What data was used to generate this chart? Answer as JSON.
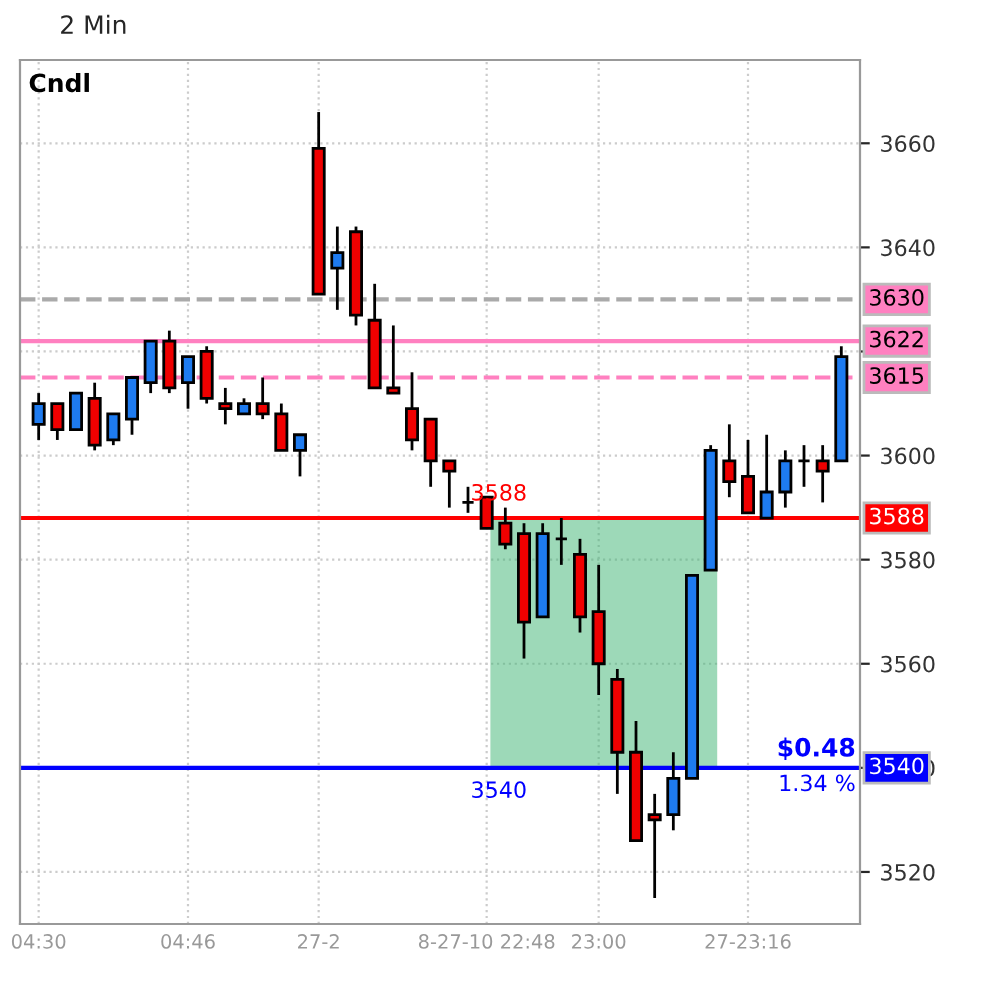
{
  "chart_data": {
    "type": "candlestick",
    "title": "2 Min",
    "categories": [
      "04:30",
      null,
      null,
      null,
      null,
      null,
      null,
      null,
      "04:46",
      null,
      null,
      null,
      null,
      null,
      null,
      "27-2",
      null,
      null,
      null,
      null,
      null,
      null,
      null,
      null,
      "8-27-10 22:48",
      null,
      null,
      null,
      null,
      null,
      "23:00",
      null,
      null,
      null,
      null,
      null,
      null,
      null,
      "27-23:16",
      null,
      null,
      null,
      null,
      null
    ],
    "ohlc": [
      [
        3606,
        3612,
        3603,
        3610
      ],
      [
        3610,
        3610,
        3603,
        3605
      ],
      [
        3605,
        3612,
        3605,
        3612
      ],
      [
        3611,
        3614,
        3601,
        3602
      ],
      [
        3603,
        3608,
        3602,
        3608
      ],
      [
        3607,
        3615,
        3604,
        3615
      ],
      [
        3614,
        3622,
        3612,
        3622
      ],
      [
        3622,
        3624,
        3612,
        3613
      ],
      [
        3614,
        3619,
        3609,
        3619
      ],
      [
        3620,
        3621,
        3610,
        3611
      ],
      [
        3610,
        3613,
        3606,
        3609
      ],
      [
        3608,
        3611,
        3608,
        3610
      ],
      [
        3610,
        3615,
        3607,
        3608
      ],
      [
        3608,
        3610,
        3601,
        3601
      ],
      [
        3601,
        3604,
        3596,
        3604
      ],
      [
        3659,
        3666,
        3631,
        3631
      ],
      [
        3636,
        3644,
        3628,
        3639
      ],
      [
        3643,
        3644,
        3625,
        3627
      ],
      [
        3626,
        3633,
        3613,
        3613
      ],
      [
        3613,
        3625,
        3612,
        3612
      ],
      [
        3609,
        3616,
        3601,
        3603
      ],
      [
        3607,
        3607,
        3594,
        3599
      ],
      [
        3599,
        3599,
        3590,
        3597
      ],
      [
        3591,
        3594,
        3589,
        3591
      ],
      [
        3592,
        3592,
        3586,
        3586
      ],
      [
        3587,
        3590,
        3582,
        3583
      ],
      [
        3585,
        3587,
        3561,
        3568
      ],
      [
        3569,
        3587,
        3569,
        3585
      ],
      [
        3584,
        3588,
        3579,
        3584
      ],
      [
        3581,
        3584,
        3566,
        3569
      ],
      [
        3570,
        3579,
        3554,
        3560
      ],
      [
        3557,
        3559,
        3535,
        3543
      ],
      [
        3543,
        3549,
        3526,
        3526
      ],
      [
        3531,
        3535,
        3515,
        3530
      ],
      [
        3531,
        3543,
        3528,
        3538
      ],
      [
        3538,
        3577,
        3538,
        3577
      ],
      [
        3578,
        3602,
        3578,
        3601
      ],
      [
        3599,
        3606,
        3592,
        3595
      ],
      [
        3596,
        3603,
        3589,
        3589
      ],
      [
        3588,
        3604,
        3588,
        3593
      ],
      [
        3593,
        3601,
        3590,
        3599
      ],
      [
        3599,
        3602,
        3594,
        3599
      ],
      [
        3599,
        3602,
        3591,
        3597
      ],
      [
        3599,
        3621,
        3599,
        3619
      ]
    ],
    "colors": [
      "#1e7bf0",
      "#f00000",
      "#1e7bf0",
      "#f00000",
      "#1e7bf0",
      "#1e7bf0",
      "#1e7bf0",
      "#f00000",
      "#1e7bf0",
      "#f00000",
      "#f00000",
      "#1e7bf0",
      "#f00000",
      "#f00000",
      "#1e7bf0",
      "#f00000",
      "#1e7bf0",
      "#f00000",
      "#f00000",
      "#f00000",
      "#f00000",
      "#f00000",
      "#f00000",
      "#000000",
      "#f00000",
      "#f00000",
      "#f00000",
      "#1e7bf0",
      "#000000",
      "#f00000",
      "#f00000",
      "#f00000",
      "#f00000",
      "#f00000",
      "#1e7bf0",
      "#1e7bf0",
      "#1e7bf0",
      "#f00000",
      "#f00000",
      "#1e7bf0",
      "#1e7bf0",
      "#000000",
      "#f00000",
      "#1e7bf0"
    ],
    "ylim": [
      3510,
      3676
    ],
    "yticks": [
      3520,
      3540,
      3560,
      3580,
      3600,
      {
        "value": 3620,
        "label": null
      },
      3640,
      3660
    ],
    "grid": true,
    "ref_lines": [
      {
        "axis": "y",
        "value": 3630,
        "label": "3630",
        "color": "#aaaaaa",
        "line_style": "dashed"
      },
      {
        "axis": "y",
        "value": 3622,
        "label": "3622",
        "color": "#ff80c0",
        "line_style": "solid"
      },
      {
        "axis": "y",
        "value": 3615,
        "label": "3615",
        "color": "#ff80c0",
        "line_style": "dashed"
      },
      {
        "axis": "y",
        "value": 3588,
        "label": "3588",
        "color": "#ff0000",
        "line_style": "solid"
      },
      {
        "axis": "y",
        "value": 3540,
        "label": "3540",
        "color": "#0000ff",
        "line_style": "solid"
      }
    ],
    "bands": [
      {
        "axis": "y",
        "from": 3540,
        "to": 3588,
        "label": null,
        "color": "#3cb371"
      }
    ],
    "annotations": [
      "Cndl",
      {
        "text": "3588",
        "y": 3588
      },
      {
        "text": "3540",
        "y": 3540
      },
      {
        "text": "$0.48",
        "y": 3540
      },
      {
        "text": "1.34 %",
        "y": 3540
      }
    ]
  }
}
